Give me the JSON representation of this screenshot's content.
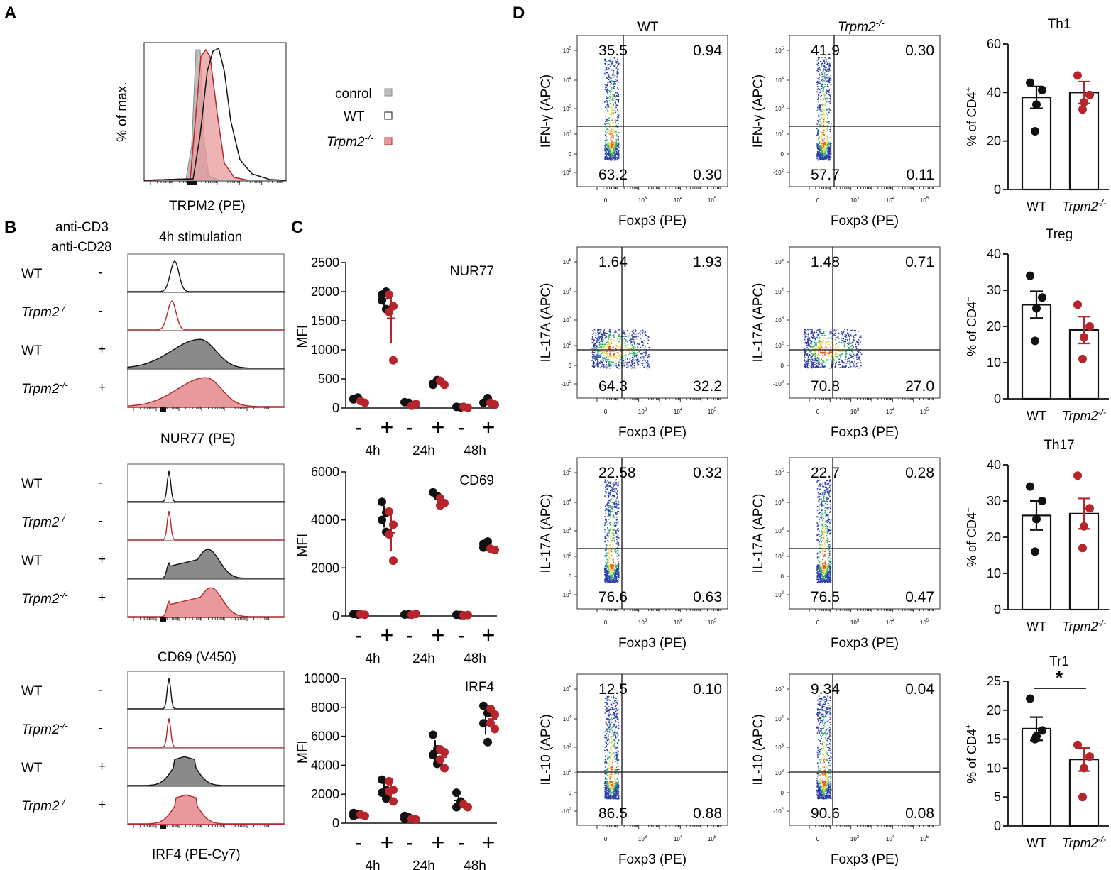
{
  "colors": {
    "wt": "#111111",
    "ko": "#b5252b",
    "ko_fill": "#e8999b",
    "control_fill": "#bdbdbd"
  },
  "panels": {
    "a": "A",
    "b": "B",
    "c": "C",
    "d": "D"
  },
  "panelA": {
    "ylabel": "% of max.",
    "xlabel": "TRPM2 (PE)",
    "legend": {
      "control": "conrol",
      "wt": "WT",
      "ko": "Trpm2",
      "ko_sup": "-/-"
    }
  },
  "panelB": {
    "stim1": "anti-CD3",
    "stim2": "anti-CD28",
    "title": "4h stimulation",
    "rows": [
      {
        "genotype": "WT",
        "sup": "",
        "stim": "-"
      },
      {
        "genotype": "Trpm2",
        "sup": "-/-",
        "stim": "-"
      },
      {
        "genotype": "WT",
        "sup": "",
        "stim": "+"
      },
      {
        "genotype": "Trpm2",
        "sup": "-/-",
        "stim": "+"
      }
    ],
    "xlabels": [
      "NUR77 (PE)",
      "CD69 (V450)",
      "IRF4 (PE-Cy7)"
    ]
  },
  "panelD": {
    "col_wt": "WT",
    "col_ko": "Trpm2",
    "col_ko_sup": "-/-",
    "xlabel": "Foxp3 (PE)",
    "tick_minus": "-10",
    "tick_zero": "0",
    "tick_base": "10",
    "rows": [
      {
        "ylabel": "IFN-γ (APC)",
        "wt": [
          "35.5",
          "0.94",
          "63.2",
          "0.30"
        ],
        "ko": [
          "41.9",
          "0.30",
          "57.7",
          "0.11"
        ]
      },
      {
        "ylabel": "IL-17A (APC)",
        "wt": [
          "1.64",
          "1.93",
          "64.3",
          "32.2"
        ],
        "ko": [
          "1.48",
          "0.71",
          "70.8",
          "27.0"
        ]
      },
      {
        "ylabel": "IL-17A (APC)",
        "wt": [
          "22.58",
          "0.32",
          "76.6",
          "0.63"
        ],
        "ko": [
          "22.7",
          "0.28",
          "76.5",
          "0.47"
        ]
      },
      {
        "ylabel": "IL-10 (APC)",
        "wt": [
          "12.5",
          "0.10",
          "86.5",
          "0.88"
        ],
        "ko": [
          "9.34",
          "0.04",
          "90.6",
          "0.08"
        ]
      }
    ]
  },
  "chart_data": [
    {
      "id": "nur77",
      "type": "scatter",
      "title": "NUR77",
      "ylabel": "MFI",
      "ylim": [
        0,
        2500
      ],
      "yticks": [
        "0",
        "500",
        "1000",
        "1500",
        "2000",
        "2500"
      ],
      "timepoints": [
        "4h",
        "24h",
        "48h"
      ],
      "stim_labels": [
        "-",
        "+"
      ],
      "series": [
        {
          "name": "WT",
          "groups": [
            [
              150,
              180,
              160
            ],
            [
              1850,
              1700,
              1950,
              2000
            ],
            [
              100,
              90
            ],
            [
              420,
              480,
              400
            ],
            [
              20,
              10
            ],
            [
              90,
              170
            ]
          ]
        },
        {
          "name": "Trpm2-/-",
          "groups": [
            [
              120,
              90
            ],
            [
              1950,
              1750,
              1650,
              820
            ],
            [
              40,
              70
            ],
            [
              470,
              400
            ],
            [
              20,
              5
            ],
            [
              90,
              60
            ]
          ]
        }
      ]
    },
    {
      "id": "cd69",
      "type": "scatter",
      "title": "CD69",
      "ylabel": "MFI",
      "ylim": [
        0,
        6000
      ],
      "yticks": [
        "0",
        "2000",
        "4000",
        "6000"
      ],
      "timepoints": [
        "4h",
        "24h",
        "48h"
      ],
      "stim_labels": [
        "-",
        "+"
      ],
      "series": [
        {
          "name": "WT",
          "groups": [
            [
              80,
              60
            ],
            [
              4750,
              4300,
              4000,
              3500
            ],
            [
              60,
              70
            ],
            [
              5150,
              5000
            ],
            [
              50,
              40
            ],
            [
              3000,
              3100,
              2850
            ]
          ]
        },
        {
          "name": "Trpm2-/-",
          "groups": [
            [
              70,
              50
            ],
            [
              4350,
              3800,
              3400,
              2300
            ],
            [
              50,
              80
            ],
            [
              4900,
              4700,
              4600
            ],
            [
              30,
              40
            ],
            [
              2800,
              2750
            ]
          ]
        }
      ]
    },
    {
      "id": "irf4",
      "type": "scatter",
      "title": "IRF4",
      "ylabel": "MFI",
      "ylim": [
        0,
        10000
      ],
      "yticks": [
        "0",
        "2000",
        "4000",
        "6000",
        "8000",
        "10000"
      ],
      "timepoints": [
        "4h",
        "24h",
        "48h"
      ],
      "stim_labels": [
        "-",
        "+"
      ],
      "series": [
        {
          "name": "WT",
          "groups": [
            [
              700,
              600,
              500
            ],
            [
              3000,
              2300,
              2100,
              1700
            ],
            [
              500,
              400,
              300
            ],
            [
              6100,
              5100,
              4700,
              4100
            ],
            [
              2100,
              1500,
              1100
            ],
            [
              8100,
              7600,
              6900,
              5600
            ]
          ]
        },
        {
          "name": "Trpm2-/-",
          "groups": [
            [
              600,
              500
            ],
            [
              2900,
              2300,
              2200,
              1500
            ],
            [
              300,
              250
            ],
            [
              5100,
              4900,
              4400,
              3800
            ],
            [
              1300,
              1100
            ],
            [
              7900,
              7500,
              6900,
              6500
            ]
          ]
        }
      ]
    },
    {
      "id": "th1",
      "type": "bar",
      "title": "Th1",
      "ylabel": "% of CD4",
      "ylabel_sup": "+",
      "ylim": [
        0,
        60
      ],
      "yticks": [
        "0",
        "20",
        "40",
        "60"
      ],
      "categories": [
        "WT",
        "Trpm2"
      ],
      "category_sup": [
        "",
        "-/-"
      ],
      "values": [
        38,
        40
      ],
      "sem": [
        4.5,
        4.5
      ],
      "points": [
        [
          44,
          41,
          35,
          24
        ],
        [
          47,
          39,
          36,
          33
        ]
      ],
      "significance": ""
    },
    {
      "id": "treg",
      "type": "bar",
      "title": "Treg",
      "ylabel": "% of CD4",
      "ylabel_sup": "+",
      "ylim": [
        0,
        40
      ],
      "yticks": [
        "0",
        "10",
        "20",
        "30",
        "40"
      ],
      "categories": [
        "WT",
        "Trpm2"
      ],
      "category_sup": [
        "",
        "-/-"
      ],
      "values": [
        26,
        19
      ],
      "sem": [
        3.7,
        3.7
      ],
      "points": [
        [
          34,
          28,
          25,
          16
        ],
        [
          26,
          20,
          17,
          11
        ]
      ],
      "significance": ""
    },
    {
      "id": "th17",
      "type": "bar",
      "title": "Th17",
      "ylabel": "% of CD4",
      "ylabel_sup": "+",
      "ylim": [
        0,
        40
      ],
      "yticks": [
        "0",
        "10",
        "20",
        "30",
        "40"
      ],
      "categories": [
        "WT",
        "Trpm2"
      ],
      "category_sup": [
        "",
        "-/-"
      ],
      "values": [
        26,
        26.5
      ],
      "sem": [
        4,
        4.2
      ],
      "points": [
        [
          34,
          30,
          25,
          16
        ],
        [
          37,
          28,
          23,
          17
        ]
      ],
      "significance": ""
    },
    {
      "id": "tr1",
      "type": "bar",
      "title": "Tr1",
      "ylabel": "% of CD4",
      "ylabel_sup": "+",
      "ylim": [
        0,
        25
      ],
      "yticks": [
        "0",
        "5",
        "10",
        "15",
        "20",
        "25"
      ],
      "categories": [
        "WT",
        "Trpm2"
      ],
      "category_sup": [
        "",
        "-/-"
      ],
      "values": [
        16.8,
        11.5
      ],
      "sem": [
        2.0,
        2.0
      ],
      "points": [
        [
          22,
          16.5,
          15.5,
          15
        ],
        [
          14,
          12,
          10,
          5
        ]
      ],
      "significance": "*"
    }
  ]
}
